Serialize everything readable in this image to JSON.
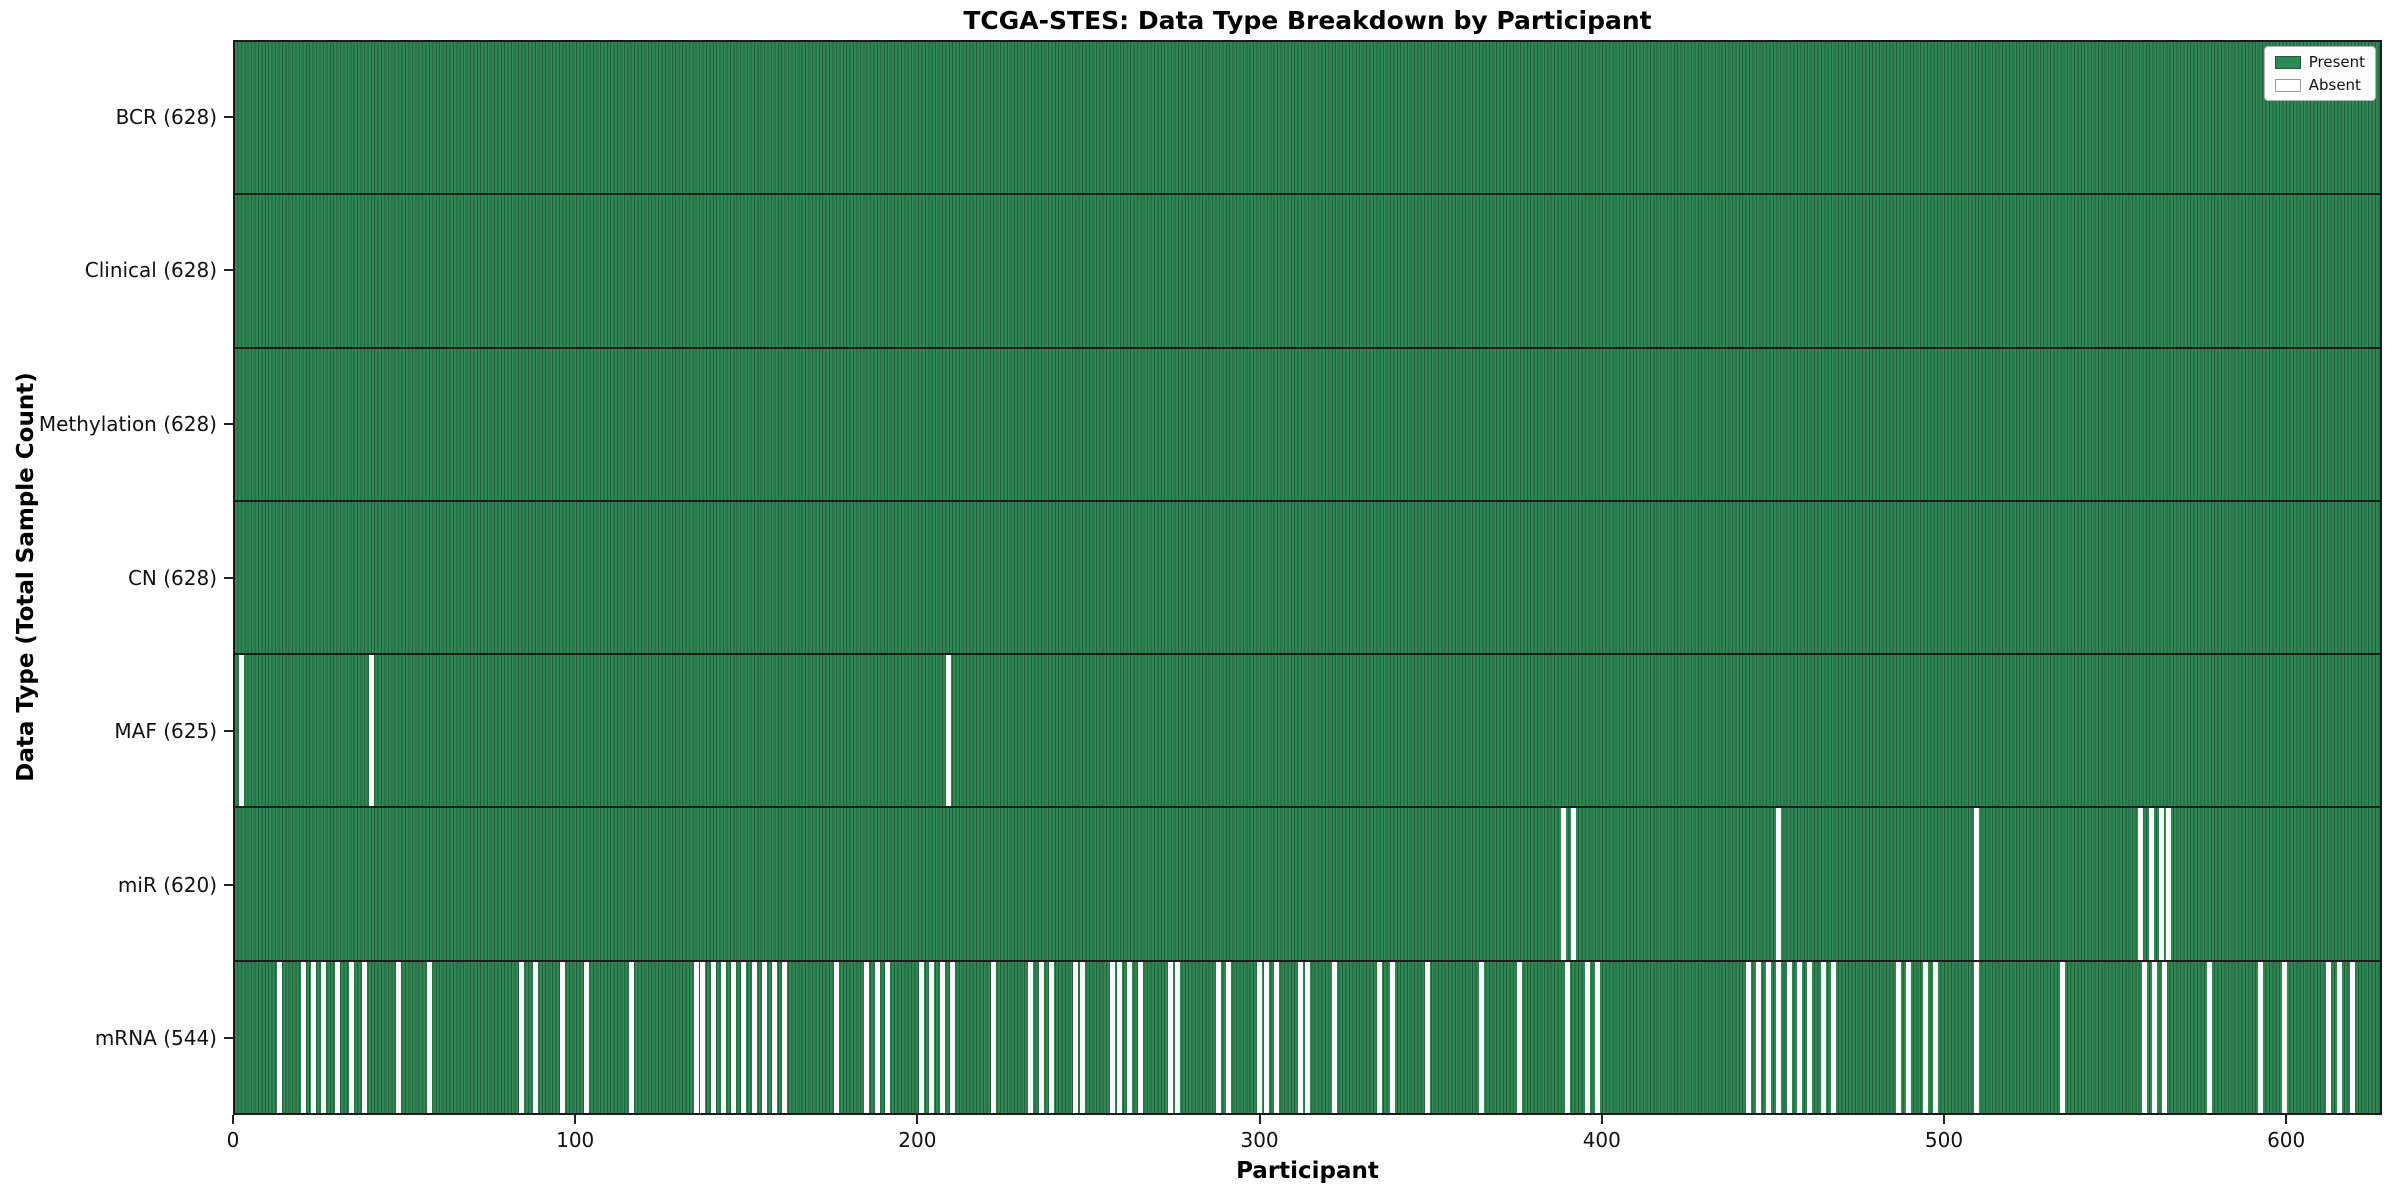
{
  "chart_data": {
    "type": "heatmap",
    "title": "TCGA-STES: Data Type Breakdown by Participant",
    "xlabel": "Participant",
    "ylabel": "Data Type (Total Sample Count)",
    "x_ticks": [
      0,
      100,
      200,
      300,
      400,
      500,
      600
    ],
    "x_max": 628,
    "n_participants": 628,
    "legend_position": "upper right",
    "legend": [
      {
        "label": "Present",
        "type": "present"
      },
      {
        "label": "Absent",
        "type": "absent"
      }
    ],
    "colors": {
      "present": "#2e8754",
      "present_edge": "#225f3d",
      "absent": "#fbfbf9",
      "row_divider": "#1c1c1c"
    },
    "rows": [
      {
        "name": "BCR",
        "label": "BCR (628)",
        "total": 628,
        "absent_participants": []
      },
      {
        "name": "Clinical",
        "label": "Clinical (628)",
        "total": 628,
        "absent_participants": []
      },
      {
        "name": "Methylation",
        "label": "Methylation (628)",
        "total": 628,
        "absent_participants": []
      },
      {
        "name": "CN",
        "label": "CN (628)",
        "total": 628,
        "absent_participants": []
      },
      {
        "name": "MAF",
        "label": "MAF (625)",
        "total": 625,
        "absent_participants": [
          2,
          40,
          209
        ]
      },
      {
        "name": "miR",
        "label": "miR (620)",
        "total": 620,
        "absent_participants": [
          389,
          392,
          452,
          510,
          558,
          561,
          564,
          566
        ]
      },
      {
        "name": "mRNA",
        "label": "mRNA (544)",
        "total": 544,
        "absent_participants": [
          13,
          20,
          23,
          26,
          30,
          34,
          38,
          48,
          57,
          84,
          88,
          96,
          103,
          116,
          135,
          137,
          140,
          143,
          146,
          149,
          152,
          155,
          158,
          161,
          176,
          185,
          188,
          191,
          201,
          204,
          207,
          210,
          222,
          233,
          236,
          239,
          246,
          248,
          257,
          259,
          262,
          265,
          274,
          276,
          288,
          291,
          300,
          302,
          305,
          312,
          314,
          322,
          335,
          339,
          349,
          365,
          376,
          390,
          396,
          399,
          443,
          446,
          449,
          452,
          455,
          458,
          461,
          465,
          468,
          487,
          490,
          495,
          498,
          510,
          535,
          559,
          562,
          565,
          578,
          593,
          600,
          613,
          616,
          620
        ]
      }
    ]
  }
}
